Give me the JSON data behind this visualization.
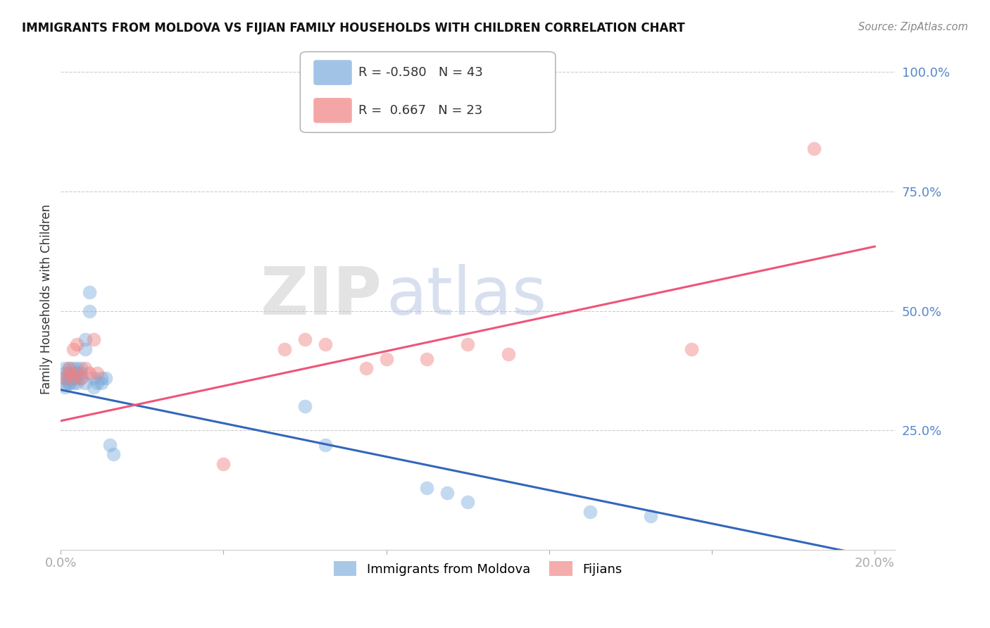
{
  "title": "IMMIGRANTS FROM MOLDOVA VS FIJIAN FAMILY HOUSEHOLDS WITH CHILDREN CORRELATION CHART",
  "source": "Source: ZipAtlas.com",
  "ylabel": "Family Households with Children",
  "xlim": [
    0.0,
    0.2
  ],
  "ylim": [
    0.0,
    1.05
  ],
  "xticks": [
    0.0,
    0.04,
    0.08,
    0.12,
    0.16,
    0.2
  ],
  "xtick_labels": [
    "0.0%",
    "",
    "",
    "",
    "",
    "20.0%"
  ],
  "yticks": [
    0.25,
    0.5,
    0.75,
    1.0
  ],
  "ytick_labels": [
    "25.0%",
    "50.0%",
    "75.0%",
    "100.0%"
  ],
  "moldova_R": -0.58,
  "moldova_N": 43,
  "fijian_R": 0.667,
  "fijian_N": 23,
  "moldova_color": "#7AABDC",
  "fijian_color": "#F08080",
  "moldova_line_color": "#3366BB",
  "fijian_line_color": "#EE5577",
  "moldova_x": [
    0.001,
    0.001,
    0.001,
    0.001,
    0.001,
    0.002,
    0.002,
    0.002,
    0.002,
    0.002,
    0.002,
    0.003,
    0.003,
    0.003,
    0.003,
    0.003,
    0.004,
    0.004,
    0.004,
    0.004,
    0.005,
    0.005,
    0.005,
    0.006,
    0.006,
    0.006,
    0.007,
    0.007,
    0.008,
    0.008,
    0.009,
    0.01,
    0.01,
    0.011,
    0.012,
    0.013,
    0.06,
    0.065,
    0.09,
    0.095,
    0.1,
    0.13,
    0.145
  ],
  "moldova_y": [
    0.36,
    0.37,
    0.38,
    0.35,
    0.34,
    0.36,
    0.37,
    0.38,
    0.36,
    0.35,
    0.35,
    0.37,
    0.36,
    0.38,
    0.35,
    0.36,
    0.37,
    0.38,
    0.36,
    0.35,
    0.37,
    0.38,
    0.36,
    0.42,
    0.44,
    0.35,
    0.5,
    0.54,
    0.36,
    0.34,
    0.35,
    0.36,
    0.35,
    0.36,
    0.22,
    0.2,
    0.3,
    0.22,
    0.13,
    0.12,
    0.1,
    0.08,
    0.07
  ],
  "fijian_x": [
    0.001,
    0.002,
    0.002,
    0.003,
    0.003,
    0.004,
    0.004,
    0.005,
    0.006,
    0.007,
    0.008,
    0.009,
    0.04,
    0.055,
    0.06,
    0.065,
    0.075,
    0.08,
    0.09,
    0.1,
    0.11,
    0.155,
    0.185
  ],
  "fijian_y": [
    0.36,
    0.38,
    0.37,
    0.36,
    0.42,
    0.37,
    0.43,
    0.36,
    0.38,
    0.37,
    0.44,
    0.37,
    0.18,
    0.42,
    0.44,
    0.43,
    0.38,
    0.4,
    0.4,
    0.43,
    0.41,
    0.42,
    0.84
  ],
  "background_color": "#FFFFFF",
  "grid_color": "#CCCCCC",
  "watermark_zip": "ZIP",
  "watermark_atlas": "atlas"
}
